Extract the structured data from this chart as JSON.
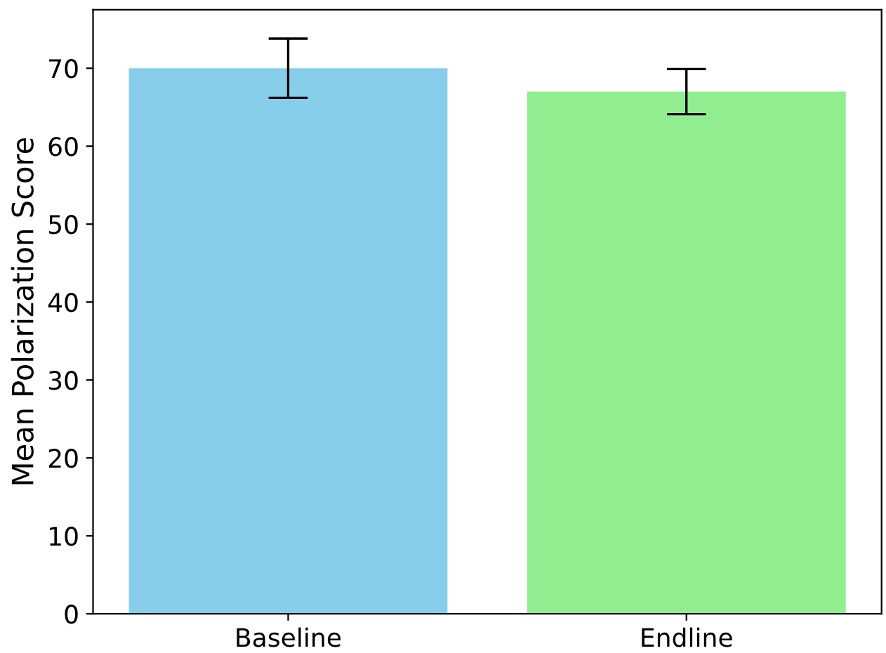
{
  "chart_data": {
    "type": "bar",
    "ylabel": "Mean Polarization Score",
    "categories": [
      "Baseline",
      "Endline"
    ],
    "values": [
      70,
      67
    ],
    "errors": [
      3.8,
      2.9
    ],
    "colors": [
      "#87ceeb",
      "#90ee90"
    ],
    "ylim": [
      0,
      77.5
    ],
    "yticks": [
      0,
      10,
      20,
      30,
      40,
      50,
      60,
      70
    ],
    "grid": false
  }
}
